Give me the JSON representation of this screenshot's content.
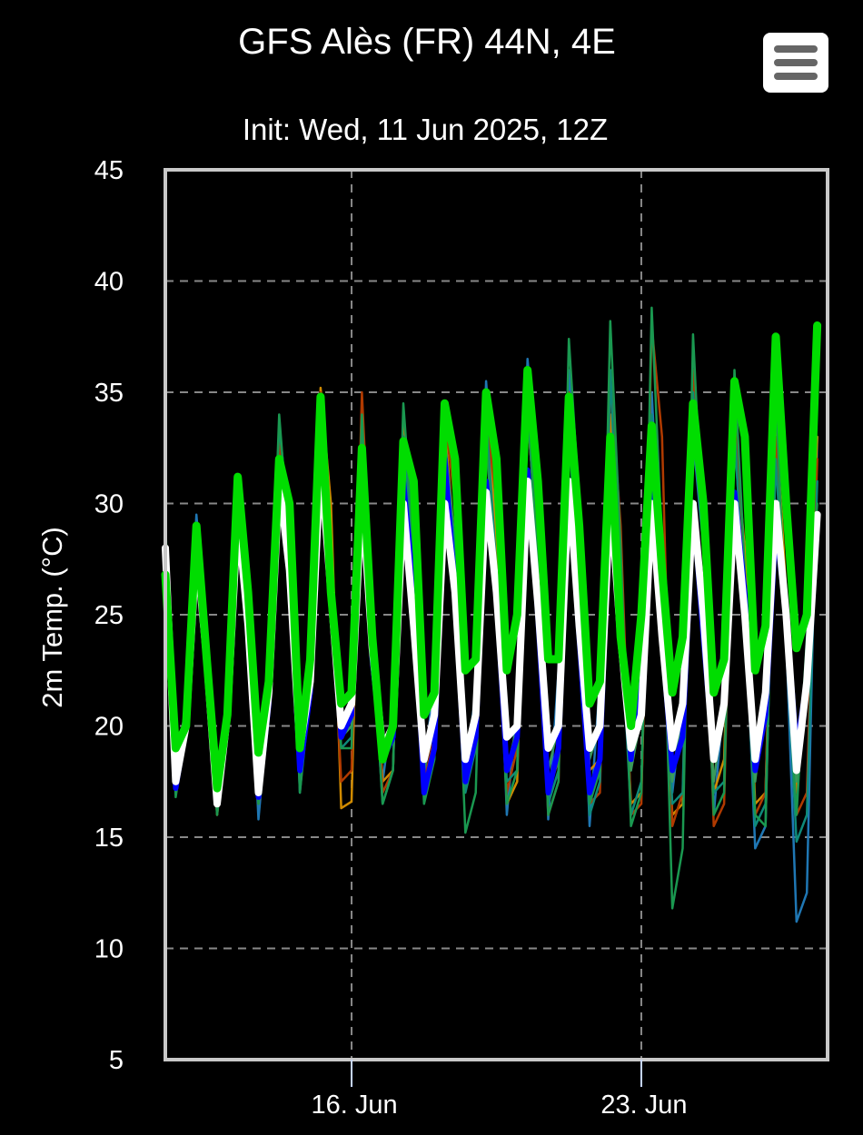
{
  "header": {
    "title": "GFS Alès (FR) 44N, 4E",
    "subtitle": "Init: Wed, 11 Jun 2025, 12Z",
    "menu_icon": "hamburger-menu-icon"
  },
  "colors": {
    "background": "#000000",
    "plot_border": "#c8c8c8",
    "grid": "#888888",
    "mean": "#ffffff",
    "control": "#00dd00",
    "operational": "#0000ff"
  },
  "chart_data": {
    "type": "line",
    "title": "GFS Alès (FR) 44N, 4E",
    "subtitle": "Init: Wed, 11 Jun 2025, 12Z",
    "xlabel": "",
    "ylabel": "2m Temp. (°C)",
    "ylim": [
      5,
      45
    ],
    "xlim": [
      "2025-06-11T12:00",
      "2025-06-27T12:00"
    ],
    "yticks": [
      5,
      10,
      15,
      20,
      25,
      30,
      35,
      40,
      45
    ],
    "xticks": [
      {
        "label": "16. Jun",
        "date": "2025-06-16T00:00"
      },
      {
        "label": "23. Jun",
        "date": "2025-06-23T00:00"
      }
    ],
    "grid": true,
    "legend": "none",
    "x_step_hours": 6,
    "x_start": "2025-06-11T12:00",
    "series": [
      {
        "role": "member",
        "color": "#1f77b4",
        "width": 2.5,
        "values": [
          28.5,
          17.0,
          20.5,
          29.5,
          24.0,
          16.5,
          20.0,
          30.0,
          26.0,
          15.8,
          21.0,
          32.0,
          30.0,
          17.0,
          22.0,
          34.0,
          28.0,
          19.5,
          20.0,
          33.0,
          24.0,
          17.5,
          21.0,
          33.5,
          29.0,
          17.5,
          22.5,
          34.5,
          30.5,
          18.0,
          21.5,
          35.5,
          29.0,
          16.0,
          21.0,
          36.5,
          31.0,
          15.8,
          22.5,
          36.0,
          28.0,
          15.5,
          22.0,
          36.0,
          27.0,
          18.0,
          22.5,
          35.0,
          26.0,
          17.0,
          21.0,
          33.0,
          28.0,
          16.0,
          21.5,
          33.0,
          26.0,
          14.5,
          15.5,
          35.0,
          24.0,
          11.2,
          12.5,
          33.0
        ]
      },
      {
        "role": "member",
        "color": "#d08a00",
        "width": 2.5,
        "values": [
          29.0,
          17.0,
          20.0,
          28.5,
          23.5,
          16.0,
          20.5,
          30.5,
          25.0,
          16.5,
          21.0,
          32.5,
          30.0,
          18.5,
          22.0,
          35.2,
          30.0,
          16.3,
          16.6,
          34.0,
          24.5,
          17.5,
          18.0,
          34.0,
          29.0,
          17.0,
          19.0,
          33.5,
          28.0,
          17.5,
          20.0,
          35.0,
          28.0,
          16.5,
          17.5,
          34.0,
          28.0,
          17.0,
          18.5,
          34.5,
          28.0,
          18.0,
          18.5,
          34.0,
          26.0,
          16.5,
          17.0,
          33.5,
          26.0,
          16.0,
          16.5,
          35.5,
          30.0,
          17.0,
          18.5,
          33.0,
          28.0,
          16.5,
          17.0,
          34.0,
          26.0,
          17.0,
          22.5,
          33.0
        ]
      },
      {
        "role": "member",
        "color": "#b03a00",
        "width": 2.5,
        "values": [
          28.0,
          17.5,
          20.5,
          28.0,
          23.0,
          16.5,
          20.5,
          30.0,
          25.0,
          16.5,
          20.5,
          33.0,
          28.0,
          18.0,
          22.0,
          35.0,
          27.0,
          17.5,
          18.0,
          35.0,
          25.0,
          17.0,
          18.0,
          33.0,
          27.0,
          17.5,
          19.5,
          34.0,
          30.0,
          18.0,
          20.0,
          34.0,
          30.0,
          17.0,
          19.0,
          34.0,
          28.0,
          16.0,
          17.5,
          35.0,
          29.0,
          16.5,
          17.0,
          35.5,
          29.0,
          16.0,
          16.5,
          38.0,
          33.0,
          15.5,
          17.0,
          36.0,
          30.0,
          15.5,
          16.5,
          35.0,
          26.0,
          16.0,
          17.0,
          33.0,
          25.0,
          16.0,
          17.0,
          32.0
        ]
      },
      {
        "role": "member",
        "color": "#0e8a7a",
        "width": 2.5,
        "values": [
          28.5,
          17.5,
          20.0,
          29.0,
          23.5,
          16.5,
          20.0,
          30.5,
          26.0,
          16.5,
          21.5,
          33.5,
          29.0,
          19.0,
          22.0,
          34.0,
          26.0,
          19.0,
          19.5,
          33.0,
          24.0,
          16.5,
          18.0,
          33.0,
          27.0,
          17.0,
          19.0,
          33.0,
          28.0,
          17.0,
          19.0,
          34.0,
          27.0,
          17.5,
          18.0,
          34.5,
          27.0,
          16.5,
          18.0,
          34.0,
          24.0,
          16.0,
          17.5,
          36.0,
          25.0,
          16.0,
          17.5,
          34.0,
          26.0,
          16.5,
          17.0,
          35.0,
          28.0,
          17.0,
          17.5,
          33.5,
          25.0,
          15.5,
          16.5,
          32.0,
          24.0,
          14.8,
          16.0,
          31.0
        ]
      },
      {
        "role": "member",
        "color": "#1a9850",
        "width": 2.5,
        "values": [
          29.2,
          16.8,
          20.0,
          28.0,
          23.0,
          16.0,
          20.5,
          31.0,
          26.0,
          16.5,
          21.0,
          34.0,
          28.0,
          17.0,
          21.5,
          34.5,
          27.0,
          19.0,
          19.0,
          34.0,
          24.0,
          16.5,
          18.0,
          34.5,
          28.0,
          16.5,
          18.5,
          32.0,
          26.5,
          15.2,
          17.0,
          33.0,
          26.0,
          16.5,
          18.0,
          35.0,
          27.0,
          16.0,
          17.5,
          37.4,
          30.0,
          16.5,
          18.0,
          38.2,
          28.0,
          15.5,
          17.0,
          38.8,
          28.0,
          11.8,
          14.5,
          37.6,
          28.0,
          16.0,
          17.0,
          36.0,
          27.0,
          16.0,
          15.5,
          35.0,
          24.0,
          16.0,
          24.0,
          30.0
        ]
      },
      {
        "role": "member",
        "color": "#3a9a5a",
        "width": 2.5,
        "values": [
          28.0,
          18.0,
          21.0,
          28.0,
          23.0,
          17.0,
          21.0,
          30.0,
          25.0,
          17.5,
          21.5,
          31.0,
          27.0,
          18.5,
          21.5,
          33.0,
          26.0,
          19.5,
          20.0,
          31.0,
          23.5,
          18.5,
          19.5,
          30.0,
          24.0,
          18.0,
          20.0,
          30.0,
          26.5,
          18.0,
          20.0,
          30.0,
          26.0,
          18.0,
          20.0,
          31.0,
          26.0,
          18.0,
          20.0,
          30.0,
          24.0,
          18.5,
          20.0,
          30.0,
          23.0,
          18.0,
          20.5,
          29.0,
          23.0,
          17.5,
          21.0,
          29.5,
          24.0,
          17.5,
          21.0,
          29.5,
          24.5,
          17.5,
          21.5,
          29.5,
          24.0,
          17.5,
          22.0,
          29.0
        ]
      },
      {
        "role": "operational",
        "color": "#0000ff",
        "width": 6,
        "values": [
          28.0,
          17.2,
          20.0,
          28.5,
          23.0,
          16.5,
          20.5,
          29.5,
          24.5,
          16.8,
          21.0,
          31.5,
          27.0,
          18.0,
          21.5,
          33.0,
          26.0,
          19.5,
          20.5,
          31.0,
          23.0,
          18.5,
          19.5,
          31.0,
          26.0,
          17.0,
          19.0,
          32.0,
          26.0,
          17.5,
          19.5,
          31.0,
          26.0,
          18.0,
          19.5,
          31.5,
          25.0,
          17.0,
          19.0,
          31.0,
          24.0,
          17.0,
          18.5,
          31.0,
          24.0,
          18.5,
          24.0,
          31.0,
          24.0,
          18.0,
          19.5,
          30.0,
          24.0,
          18.5,
          21.0,
          30.5,
          26.0,
          18.0,
          20.5,
          29.0,
          25.0,
          19.0,
          22.0,
          29.0
        ]
      },
      {
        "role": "ensemble-mean",
        "color": "#ffffff",
        "width": 8,
        "values": [
          28.0,
          17.5,
          20.0,
          28.0,
          23.0,
          16.5,
          20.5,
          29.5,
          24.5,
          17.0,
          21.5,
          31.0,
          27.0,
          19.0,
          22.0,
          32.0,
          26.0,
          20.0,
          21.0,
          30.5,
          23.5,
          19.0,
          20.0,
          30.0,
          24.5,
          18.5,
          20.5,
          30.0,
          26.0,
          18.5,
          20.5,
          30.5,
          26.0,
          19.5,
          20.0,
          31.0,
          25.5,
          19.0,
          20.0,
          31.0,
          24.5,
          19.0,
          20.0,
          30.5,
          24.0,
          19.0,
          20.5,
          30.0,
          24.0,
          19.0,
          21.0,
          30.0,
          25.0,
          18.5,
          21.0,
          30.0,
          25.0,
          18.5,
          21.5,
          30.0,
          25.0,
          18.0,
          22.0,
          29.5
        ]
      },
      {
        "role": "control",
        "color": "#00dd00",
        "width": 9,
        "values": [
          26.8,
          19.0,
          20.0,
          29.0,
          23.0,
          17.2,
          20.5,
          31.2,
          26.0,
          18.8,
          22.0,
          32.0,
          30.0,
          19.0,
          23.0,
          34.8,
          26.0,
          21.0,
          21.5,
          32.5,
          24.0,
          18.5,
          20.0,
          32.8,
          31.0,
          20.5,
          21.5,
          34.5,
          32.0,
          22.5,
          23.0,
          35.0,
          32.0,
          22.5,
          25.0,
          36.0,
          31.0,
          23.0,
          23.0,
          34.8,
          29.0,
          21.0,
          22.0,
          33.0,
          24.0,
          20.0,
          25.0,
          33.5,
          27.0,
          21.5,
          24.0,
          34.5,
          30.0,
          21.5,
          23.0,
          35.5,
          33.0,
          22.5,
          24.5,
          37.5,
          30.0,
          23.5,
          25.0,
          38.0
        ]
      }
    ]
  }
}
